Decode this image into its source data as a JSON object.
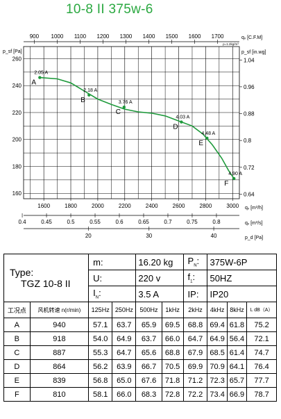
{
  "title": "10-8 II 375w-6",
  "chart_data": {
    "type": "line",
    "series": [
      {
        "points": [
          {
            "point": "A",
            "x": 1570,
            "y": 246,
            "label": "2.05 A"
          },
          {
            "point": "B",
            "x": 1935,
            "y": 233,
            "label": "2.18 A"
          },
          {
            "point": "C",
            "x": 2195,
            "y": 224,
            "label": "3.76 A"
          },
          {
            "point": "D",
            "x": 2620,
            "y": 213,
            "label": "4.03 A"
          },
          {
            "point": "E",
            "x": 2810,
            "y": 201,
            "label": "4.48 A"
          },
          {
            "point": "F",
            "x": 3010,
            "y": 171,
            "label": "4.90 A"
          }
        ],
        "curve": [
          [
            1570,
            246
          ],
          [
            1700,
            245
          ],
          [
            1800,
            242
          ],
          [
            1900,
            236
          ],
          [
            2000,
            230
          ],
          [
            2100,
            226
          ],
          [
            2200,
            222.5
          ],
          [
            2300,
            220.5
          ],
          [
            2400,
            219.5
          ],
          [
            2500,
            217.5
          ],
          [
            2620,
            213
          ],
          [
            2700,
            210
          ],
          [
            2780,
            204
          ],
          [
            2850,
            196
          ],
          [
            2920,
            186
          ],
          [
            2970,
            177
          ],
          [
            3010,
            171
          ]
        ]
      }
    ],
    "x_bottom": {
      "label": "qᵥ [m³/h]",
      "ticks": [
        1600,
        1800,
        2000,
        2200,
        2400,
        2600,
        2800,
        3000
      ],
      "range": [
        1450,
        3050
      ]
    },
    "x_bottom2": {
      "label": "qᵥ [m³/s]",
      "ticks": [
        "0.4",
        "0.45",
        "0.5",
        "0.55",
        "0.6",
        "0.65",
        "0.7",
        "0.75",
        "0.8"
      ]
    },
    "x_bottom3": {
      "label": "p_d [Pa]",
      "ticks": [
        "20",
        "30",
        "40"
      ]
    },
    "x_top": {
      "label": "qᵥ [C.F.M]",
      "ticks": [
        900,
        1000,
        1100,
        1200,
        1300,
        1400,
        1500,
        1600,
        1700
      ]
    },
    "y_left": {
      "label": "p_sf [Pa]",
      "ticks": [
        160,
        180,
        200,
        220,
        240,
        260
      ],
      "range": [
        156,
        269
      ]
    },
    "y_right": {
      "label": "p_sf [in.wg]",
      "ticks": [
        "0.64",
        "0.72",
        "0.8",
        "0.88",
        "0.96",
        "1.04"
      ]
    },
    "density_note": "ρ=1.2kg/m³",
    "grid": true
  },
  "spec": {
    "type_label": "Type:",
    "type_value": "TGZ 10-8 II",
    "m_label": "m:",
    "m_value": "16.20 kg",
    "pn_label": "P",
    "pn_sub": "N",
    "pn_value": "375W-6P",
    "u_label": "U:",
    "u_value": "220 v",
    "f_label": "f",
    "f_sub": "1",
    "f_value": "50HZ",
    "in_label": "I",
    "in_sub": "N",
    "in_value": "3.5 A",
    "ip_label": "IP:",
    "ip_value": "IP20",
    "columns": [
      "工况点",
      "风机转速 n(r/min)",
      "125Hz",
      "250Hz",
      "500Hz",
      "1kHz",
      "2kHz",
      "4kHz",
      "8kHz",
      "L dB（A）"
    ],
    "rows": [
      [
        "A",
        "940",
        "57.1",
        "63.7",
        "65.9",
        "69.5",
        "68.8",
        "69.4",
        "61.8",
        "75.2"
      ],
      [
        "B",
        "918",
        "54.0",
        "64.9",
        "63.7",
        "66.0",
        "64.7",
        "64.9",
        "56.4",
        "72.1"
      ],
      [
        "C",
        "887",
        "55.3",
        "64.7",
        "65.6",
        "68.8",
        "67.9",
        "68.5",
        "61.4",
        "74.7"
      ],
      [
        "D",
        "864",
        "56.2",
        "63.9",
        "66.7",
        "70.5",
        "69.9",
        "70.9",
        "64.1",
        "76.4"
      ],
      [
        "E",
        "839",
        "56.8",
        "65.0",
        "67.6",
        "71.8",
        "71.2",
        "72.3",
        "65.7",
        "77.7"
      ],
      [
        "F",
        "810",
        "58.1",
        "66.0",
        "68.3",
        "72.8",
        "72.2",
        "73.4",
        "66.9",
        "78.7"
      ]
    ]
  },
  "colors": {
    "title": "#2aa840",
    "curve": "#1f9a3c"
  }
}
